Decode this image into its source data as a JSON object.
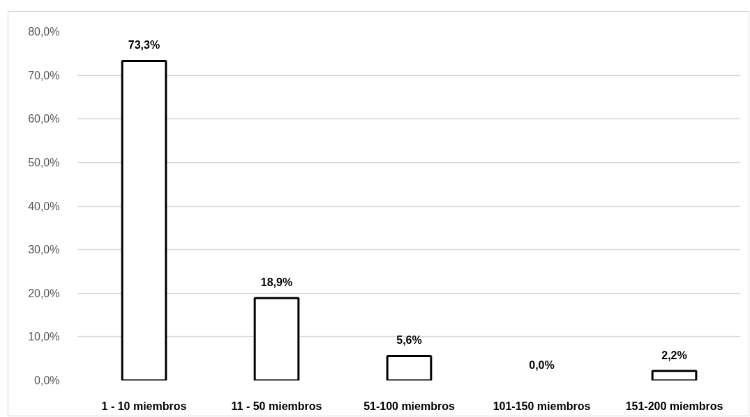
{
  "chart_data": {
    "type": "bar",
    "categories": [
      "1 - 10 miembros",
      "11 - 50 miembros",
      "51-100 miembros",
      "101-150 miembros",
      "151-200 miembros"
    ],
    "values": [
      73.3,
      18.9,
      5.6,
      0.0,
      2.2
    ],
    "value_labels": [
      "73,3%",
      "18,9%",
      "5,6%",
      "0,0%",
      "2,2%"
    ],
    "color": "#ffffff",
    "ylim": [
      0,
      80
    ],
    "yticks": [
      {
        "value": 0,
        "label": "0,0%"
      },
      {
        "value": 10,
        "label": "10,0%"
      },
      {
        "value": 20,
        "label": "20,0%"
      },
      {
        "value": 30,
        "label": "30,0%"
      },
      {
        "value": 40,
        "label": "40,0%"
      },
      {
        "value": 50,
        "label": "50,0%"
      },
      {
        "value": 60,
        "label": "60,0%"
      },
      {
        "value": 70,
        "label": "70,0%"
      },
      {
        "value": 80,
        "label": "80,0%"
      }
    ],
    "grid": "y"
  }
}
